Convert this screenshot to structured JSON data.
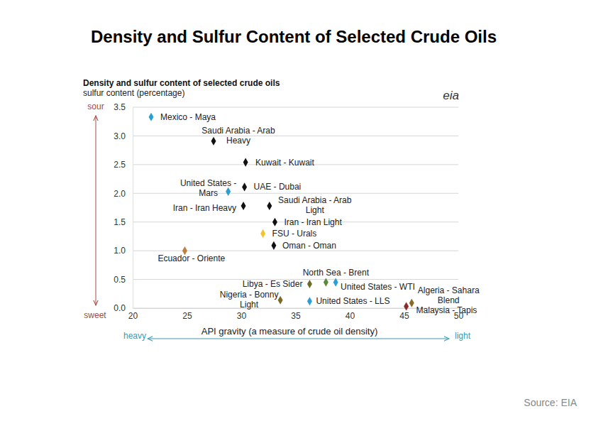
{
  "chart_data": {
    "type": "scatter",
    "title": "Density and Sulfur Content of Selected Crude Oils",
    "subtitle": "Density and sulfur content of selected crude oils",
    "ylabel": "sulfur content (percentage)",
    "xlabel": "API gravity (a measure of crude oil density)",
    "logo": "eia",
    "source": "Source: EIA",
    "annotations": [
      "sour",
      "sweet",
      "heavy",
      "light"
    ],
    "marker": "diamond",
    "grid": true,
    "labels": [
      [
        "Mexico - Maya"
      ],
      [
        "Saudi Arabia - Arab",
        "Heavy"
      ],
      [
        "Kuwait - Kuwait"
      ],
      [
        "United States -",
        "Mars"
      ],
      [
        "UAE - Dubai"
      ],
      [
        "Iran - Iran Heavy"
      ],
      [
        "Saudi Arabia - Arab",
        "Light"
      ],
      [
        "Iran - Iran Light"
      ],
      [
        "FSU - Urals"
      ],
      [
        "Oman - Oman"
      ],
      [
        "Ecuador - Oriente"
      ],
      [
        "Libya - Es Sider"
      ],
      [
        "North Sea - Brent"
      ],
      [
        "United States - WTI"
      ],
      [
        "Nigeria - Bonny",
        "Light"
      ],
      [
        "United States - LLS"
      ],
      [
        "Algeria - Sahara",
        "Blend"
      ],
      [
        "Malaysia - Tapis"
      ]
    ],
    "x": [
      21.7,
      27.45,
      30.4,
      28.8,
      30.3,
      30.2,
      32.6,
      33.1,
      32.0,
      33.0,
      24.8,
      36.3,
      37.8,
      38.7,
      33.6,
      36.3,
      45.7,
      45.2
    ],
    "values": [
      3.33,
      2.91,
      2.54,
      2.03,
      2.11,
      1.78,
      1.78,
      1.5,
      1.3,
      1.09,
      1.0,
      0.42,
      0.45,
      0.45,
      0.14,
      0.12,
      0.09,
      0.03
    ],
    "colors": [
      "#2a9fd6",
      "#111111",
      "#111111",
      "#2a9fd6",
      "#111111",
      "#111111",
      "#111111",
      "#111111",
      "#f5c330",
      "#111111",
      "#c07f3c",
      "#6e6a2a",
      "#5b8c3a",
      "#2a9fd6",
      "#7a6a28",
      "#2a9fd6",
      "#8a6a2a",
      "#8b2a2a"
    ],
    "xlim": [
      20,
      50
    ],
    "xticks": [
      20,
      25,
      30,
      35,
      40,
      45,
      50
    ],
    "ylim": [
      0,
      3.5
    ],
    "yticks": [
      {
        "value": 0,
        "label": "0.0"
      },
      0.5,
      {
        "value": 1,
        "label": "1.0"
      },
      1.5,
      {
        "value": 2,
        "label": "2.0"
      },
      2.5,
      {
        "value": 3,
        "label": "3.0"
      },
      3.5
    ]
  }
}
